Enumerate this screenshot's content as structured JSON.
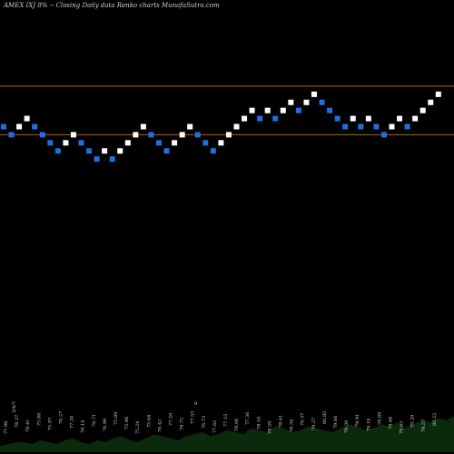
{
  "chart_data": {
    "type": "renko",
    "title": "AMEX  IXJ    8% --  Closing Daily data  Renko  charts MunafaSutra.com",
    "colors": {
      "background": "#000000",
      "up_brick": "#ffffff",
      "down_brick": "#1e6fe0",
      "reference_line": "#b8611f",
      "volume_area": "#0b2a0b"
    },
    "reference_levels": [
      80.65,
      77.05
    ],
    "y_range": [
      65.5,
      83.0
    ],
    "bricks": [
      {
        "dir": "down",
        "price": 77.65
      },
      {
        "dir": "down",
        "price": 77.05
      },
      {
        "dir": "up",
        "price": 77.65
      },
      {
        "dir": "up",
        "price": 78.25
      },
      {
        "dir": "down",
        "price": 77.65
      },
      {
        "dir": "down",
        "price": 77.05
      },
      {
        "dir": "down",
        "price": 76.45
      },
      {
        "dir": "down",
        "price": 75.85
      },
      {
        "dir": "up",
        "price": 76.45
      },
      {
        "dir": "up",
        "price": 77.05
      },
      {
        "dir": "down",
        "price": 76.45
      },
      {
        "dir": "down",
        "price": 75.85
      },
      {
        "dir": "down",
        "price": 75.25
      },
      {
        "dir": "up",
        "price": 75.85
      },
      {
        "dir": "down",
        "price": 75.25
      },
      {
        "dir": "up",
        "price": 75.85
      },
      {
        "dir": "up",
        "price": 76.45
      },
      {
        "dir": "up",
        "price": 77.05
      },
      {
        "dir": "up",
        "price": 77.65
      },
      {
        "dir": "down",
        "price": 77.05
      },
      {
        "dir": "down",
        "price": 76.45
      },
      {
        "dir": "down",
        "price": 75.85
      },
      {
        "dir": "up",
        "price": 76.45
      },
      {
        "dir": "up",
        "price": 77.05
      },
      {
        "dir": "up",
        "price": 77.65
      },
      {
        "dir": "down",
        "price": 77.05
      },
      {
        "dir": "down",
        "price": 76.45
      },
      {
        "dir": "down",
        "price": 75.85
      },
      {
        "dir": "up",
        "price": 76.45
      },
      {
        "dir": "up",
        "price": 77.05
      },
      {
        "dir": "up",
        "price": 77.65
      },
      {
        "dir": "up",
        "price": 78.25
      },
      {
        "dir": "up",
        "price": 78.85
      },
      {
        "dir": "down",
        "price": 78.25
      },
      {
        "dir": "up",
        "price": 78.85
      },
      {
        "dir": "down",
        "price": 78.25
      },
      {
        "dir": "up",
        "price": 78.85
      },
      {
        "dir": "up",
        "price": 79.45
      },
      {
        "dir": "down",
        "price": 78.85
      },
      {
        "dir": "up",
        "price": 79.45
      },
      {
        "dir": "up",
        "price": 80.05
      },
      {
        "dir": "down",
        "price": 79.45
      },
      {
        "dir": "down",
        "price": 78.85
      },
      {
        "dir": "down",
        "price": 78.25
      },
      {
        "dir": "down",
        "price": 77.65
      },
      {
        "dir": "up",
        "price": 78.25
      },
      {
        "dir": "down",
        "price": 77.65
      },
      {
        "dir": "up",
        "price": 78.25
      },
      {
        "dir": "down",
        "price": 77.65
      },
      {
        "dir": "down",
        "price": 77.05
      },
      {
        "dir": "up",
        "price": 77.65
      },
      {
        "dir": "up",
        "price": 78.25
      },
      {
        "dir": "down",
        "price": 77.65
      },
      {
        "dir": "up",
        "price": 78.25
      },
      {
        "dir": "up",
        "price": 78.85
      },
      {
        "dir": "up",
        "price": 79.45
      },
      {
        "dir": "up",
        "price": 80.05
      }
    ],
    "volume_values": [
      3,
      4,
      5,
      5,
      4,
      6,
      5,
      4,
      6,
      7,
      5,
      4,
      6,
      5,
      7,
      8,
      6,
      5,
      7,
      9,
      8,
      7,
      6,
      8,
      9,
      10,
      8,
      9,
      11,
      10,
      9,
      12,
      11,
      10,
      13,
      12,
      10,
      11,
      13,
      12,
      11,
      10,
      12,
      14,
      13,
      11,
      12,
      14,
      13,
      15,
      12,
      14,
      16,
      15,
      17,
      16,
      18
    ],
    "price_labels": [
      "77.98",
      "78.37",
      "78.41",
      "75.88",
      "75.97",
      "76.27",
      "77.20",
      "76.14",
      "76.71",
      "76.99",
      "75.89",
      "75.96",
      "75.24",
      "75.64",
      "76.42",
      "77.20",
      "78.72",
      "77.53",
      "76.73",
      "77.62",
      "77.15",
      "78.06",
      "77.36",
      "78.54",
      "78.59",
      "78.61",
      "78.34",
      "78.37",
      "79.27",
      "80.85",
      "79.66",
      "79.30",
      "78.91",
      "79.19",
      "78.69",
      "79.66",
      "79.63",
      "79.20",
      "79.57",
      "80.22"
    ],
    "annotations": [
      "9",
      "3/4/7"
    ]
  }
}
